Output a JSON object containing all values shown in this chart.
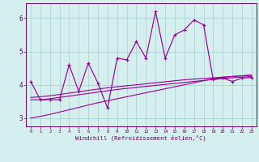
{
  "xlabel": "Windchill (Refroidissement éolien,°C)",
  "x": [
    0,
    1,
    2,
    3,
    4,
    5,
    6,
    7,
    8,
    9,
    10,
    11,
    12,
    13,
    14,
    15,
    16,
    17,
    18,
    19,
    20,
    21,
    22,
    23
  ],
  "y_main": [
    4.1,
    3.55,
    3.55,
    3.55,
    4.6,
    3.8,
    4.65,
    4.05,
    3.3,
    4.8,
    4.75,
    5.3,
    4.8,
    6.2,
    4.8,
    5.5,
    5.65,
    5.95,
    5.8,
    4.15,
    4.2,
    4.1,
    4.2,
    4.22
  ],
  "y_line1": [
    3.55,
    3.55,
    3.58,
    3.62,
    3.66,
    3.7,
    3.74,
    3.78,
    3.82,
    3.86,
    3.89,
    3.92,
    3.95,
    3.98,
    4.01,
    4.04,
    4.07,
    4.1,
    4.13,
    4.16,
    4.19,
    4.21,
    4.23,
    4.25
  ],
  "y_line2": [
    3.62,
    3.64,
    3.67,
    3.71,
    3.75,
    3.79,
    3.83,
    3.87,
    3.91,
    3.94,
    3.97,
    4.0,
    4.03,
    4.06,
    4.09,
    4.12,
    4.15,
    4.17,
    4.19,
    4.21,
    4.23,
    4.25,
    4.27,
    4.29
  ],
  "y_line3": [
    3.0,
    3.05,
    3.11,
    3.18,
    3.25,
    3.32,
    3.39,
    3.46,
    3.52,
    3.58,
    3.64,
    3.7,
    3.76,
    3.82,
    3.88,
    3.94,
    4.0,
    4.06,
    4.12,
    4.18,
    4.22,
    4.25,
    4.27,
    4.29
  ],
  "ylim": [
    2.75,
    6.45
  ],
  "xlim": [
    -0.5,
    23.5
  ],
  "bg_color": "#d5efef",
  "grid_color": "#aed4d4",
  "line_color": "#990099",
  "tick_color": "#660066",
  "yticks": [
    3,
    4,
    5,
    6
  ],
  "xticks": [
    0,
    1,
    2,
    3,
    4,
    5,
    6,
    7,
    8,
    9,
    10,
    11,
    12,
    13,
    14,
    15,
    16,
    17,
    18,
    19,
    20,
    21,
    22,
    23
  ]
}
